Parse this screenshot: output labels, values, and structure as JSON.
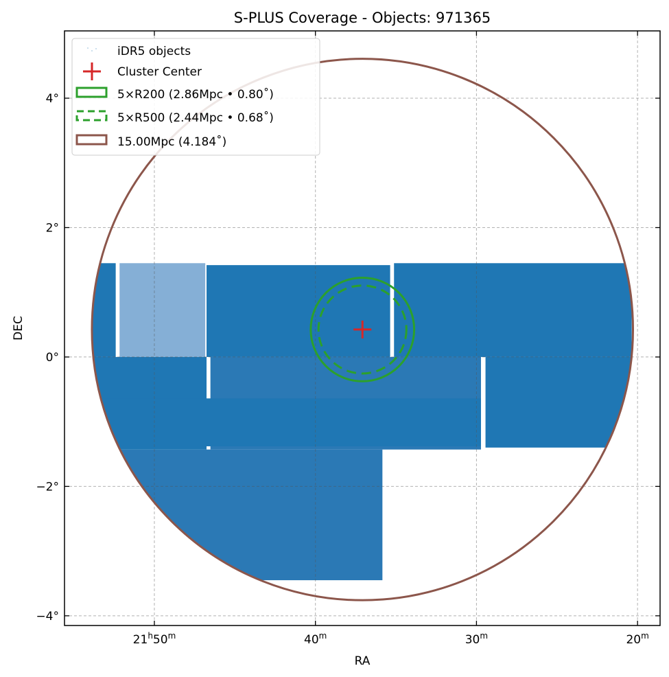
{
  "chart_data": {
    "type": "scatter",
    "title": "S-PLUS Coverage - Objects: 971365",
    "xlabel": "RA",
    "ylabel": "DEC",
    "xlim_deg": [
      328.895,
      319.65
    ],
    "ylim_deg": [
      -4.15,
      5.04
    ],
    "x_ticks": [
      {
        "value": 327.5,
        "main": "21",
        "sup1": "h",
        "main2": "50",
        "sup2": "m"
      },
      {
        "value": 325.0,
        "main": "",
        "sup1": "",
        "main2": "40",
        "sup2": "m"
      },
      {
        "value": 322.5,
        "main": "",
        "sup1": "",
        "main2": "30",
        "sup2": "m"
      },
      {
        "value": 320.0,
        "main": "",
        "sup1": "",
        "main2": "20",
        "sup2": "m"
      }
    ],
    "y_ticks": [
      {
        "value": 4,
        "label": "4°"
      },
      {
        "value": 2,
        "label": "2°"
      },
      {
        "value": 0,
        "label": "0°"
      },
      {
        "value": -2,
        "label": "−2°"
      },
      {
        "value": -4,
        "label": "−4°"
      }
    ],
    "grid": true,
    "legend_position": "upper-left",
    "legend": [
      {
        "label": "iDR5 objects",
        "kind": "points"
      },
      {
        "label": "Cluster Center",
        "kind": "plus"
      },
      {
        "label": "5×R200 (2.86Mpc • 0.80$^\\circ$)",
        "display": "5×R200 (2.86Mpc • 0.80˚)",
        "kind": "solid"
      },
      {
        "label": "5×R500 (2.44Mpc • 0.68$^\\circ$)",
        "display": "5×R500 (2.44Mpc • 0.68˚)",
        "kind": "dashed"
      },
      {
        "label": "15.00Mpc (4.184$^\\circ$)",
        "display": "15.00Mpc (4.184˚)",
        "kind": "big"
      }
    ],
    "cluster_center": {
      "ra": 324.27,
      "dec": 0.425
    },
    "circles": [
      {
        "name": "R200x5",
        "radius_deg": 0.8,
        "color": "#2ca02c",
        "dashed": false
      },
      {
        "name": "R500x5",
        "radius_deg": 0.68,
        "color": "#2ca02c",
        "dashed": true
      },
      {
        "name": "15Mpc",
        "radius_deg": 4.184,
        "color": "#8c564b",
        "dashed": false
      }
    ],
    "coverage_tiles": [
      {
        "ra": [
          328.46,
          328.1
        ],
        "dec": [
          0,
          1.45
        ],
        "density": "high"
      },
      {
        "ra": [
          328.04,
          326.71
        ],
        "dec": [
          0,
          1.45
        ],
        "density": "low"
      },
      {
        "ra": [
          326.69,
          323.84
        ],
        "dec": [
          0,
          1.42
        ],
        "density": "high"
      },
      {
        "ra": [
          323.78,
          320.09
        ],
        "dec": [
          0,
          1.45
        ],
        "density": "high"
      },
      {
        "ra": [
          328.46,
          326.69
        ],
        "dec": [
          -1.43,
          0
        ],
        "density": "high"
      },
      {
        "ra": [
          326.63,
          322.43
        ],
        "dec": [
          -1.43,
          0
        ],
        "density": "medium"
      },
      {
        "ra": [
          322.36,
          320.09
        ],
        "dec": [
          -1.4,
          0
        ],
        "density": "high"
      },
      {
        "ra": [
          328.46,
          323.96
        ],
        "dec": [
          -3.45,
          -1.43
        ],
        "density": "medium"
      },
      {
        "ra": [
          328.46,
          322.43
        ],
        "dec": [
          -1.38,
          -0.64
        ],
        "density": "high"
      }
    ],
    "colors": {
      "points": "#1f77b4",
      "points_low": "#85afd6",
      "points_medium": "#2b79b5",
      "center": "#d62728"
    }
  }
}
